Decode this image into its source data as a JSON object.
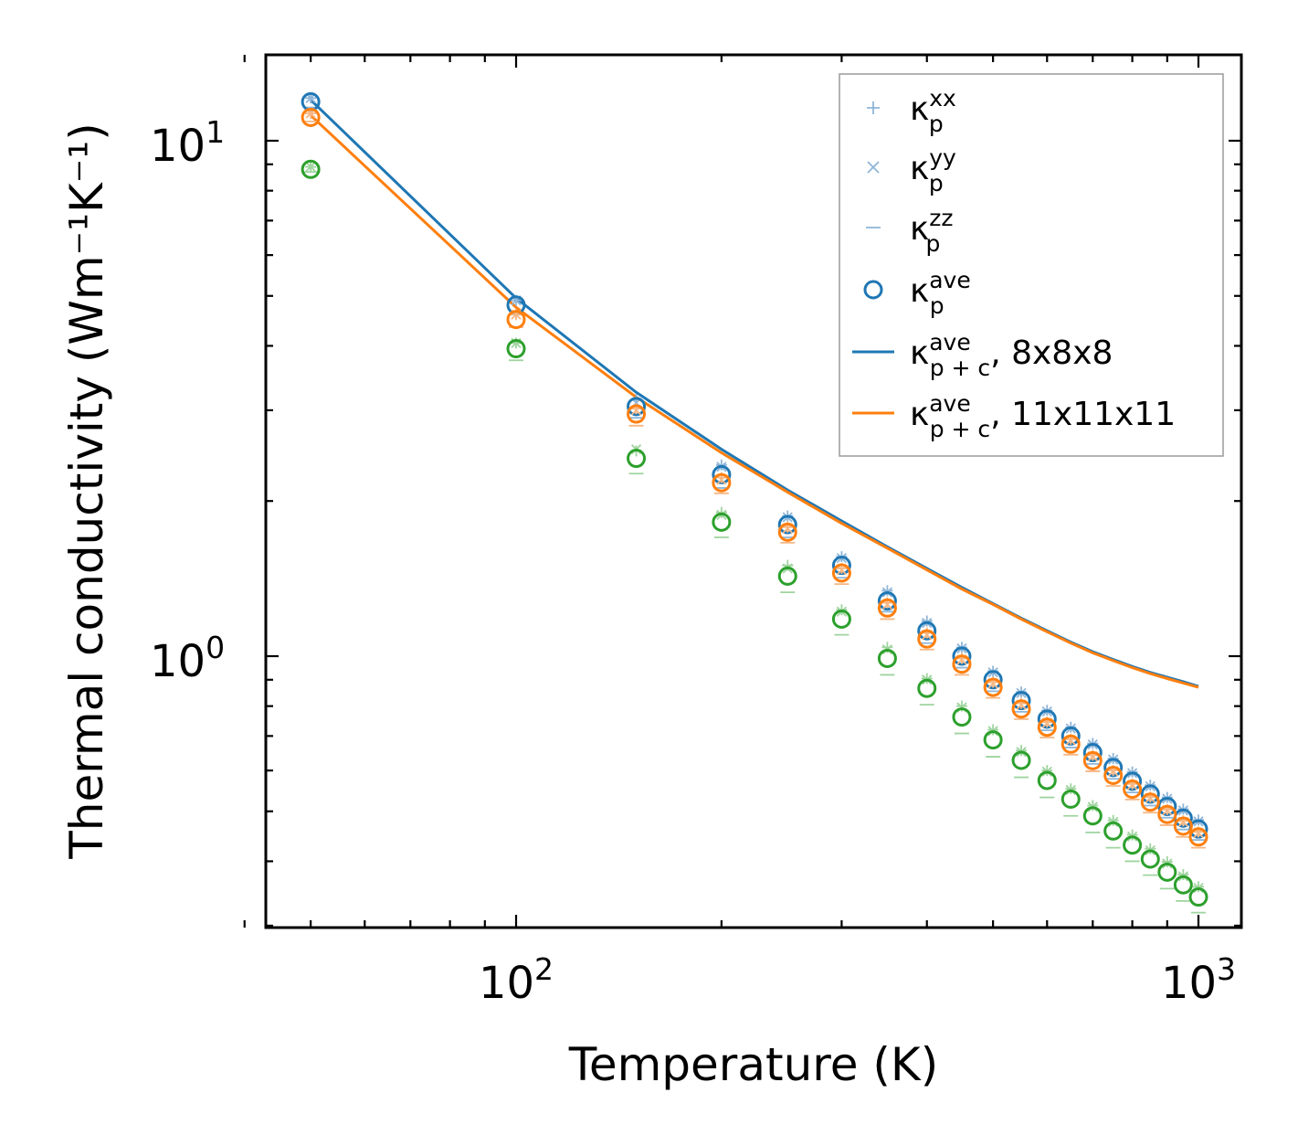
{
  "chart_data": {
    "type": "scatter",
    "xscale": "log",
    "yscale": "log",
    "xlabel": "Temperature (K)",
    "ylabel": "Thermal conductivity",
    "ylabel_units": "(Wm⁻¹K⁻¹)",
    "xlim": [
      40,
      1050
    ],
    "ylim": [
      0.3,
      16
    ],
    "xticks": [
      {
        "value": 100,
        "base": "10",
        "exp": "2"
      },
      {
        "value": 1000,
        "base": "10",
        "exp": "3"
      }
    ],
    "yticks": [
      {
        "value": 1,
        "base": "10",
        "exp": "0"
      },
      {
        "value": 10,
        "base": "10",
        "exp": "1"
      }
    ],
    "x": [
      50,
      100,
      150,
      200,
      250,
      300,
      350,
      400,
      450,
      500,
      550,
      600,
      650,
      700,
      750,
      800,
      850,
      900,
      950,
      1000
    ],
    "series": [
      {
        "name": "blue",
        "color": "#1f77b4",
        "ave": [
          11.9,
          4.8,
          3.05,
          2.25,
          1.8,
          1.5,
          1.28,
          1.12,
          1.0,
          0.9,
          0.82,
          0.755,
          0.7,
          0.65,
          0.608,
          0.572,
          0.54,
          0.511,
          0.485,
          0.462
        ],
        "xx": [
          12.1,
          4.9,
          3.15,
          2.35,
          1.87,
          1.56,
          1.34,
          1.17,
          1.04,
          0.935,
          0.852,
          0.785,
          0.728,
          0.677,
          0.633,
          0.596,
          0.562,
          0.532,
          0.505,
          0.481
        ],
        "yy": [
          12.1,
          4.9,
          3.1,
          2.33,
          1.86,
          1.55,
          1.33,
          1.16,
          1.035,
          0.93,
          0.848,
          0.781,
          0.724,
          0.674,
          0.63,
          0.593,
          0.559,
          0.529,
          0.502,
          0.478
        ],
        "zz": [
          11.6,
          4.6,
          2.9,
          2.12,
          1.7,
          1.42,
          1.22,
          1.06,
          0.95,
          0.855,
          0.78,
          0.718,
          0.665,
          0.618,
          0.578,
          0.544,
          0.513,
          0.486,
          0.461,
          0.44
        ],
        "fit": [
          12.0,
          4.95,
          3.25,
          2.52,
          2.1,
          1.83,
          1.63,
          1.48,
          1.36,
          1.265,
          1.185,
          1.12,
          1.065,
          1.02,
          0.985,
          0.955,
          0.93,
          0.91,
          0.892,
          0.874
        ]
      },
      {
        "name": "orange",
        "color": "#ff7f0e",
        "ave": [
          11.1,
          4.5,
          2.95,
          2.17,
          1.74,
          1.45,
          1.24,
          1.08,
          0.965,
          0.87,
          0.79,
          0.728,
          0.675,
          0.627,
          0.587,
          0.552,
          0.521,
          0.493,
          0.468,
          0.446
        ],
        "xx": [
          11.3,
          4.6,
          3.02,
          2.22,
          1.78,
          1.48,
          1.27,
          1.11,
          0.99,
          0.89,
          0.81,
          0.745,
          0.69,
          0.642,
          0.6,
          0.565,
          0.533,
          0.504,
          0.479,
          0.456
        ],
        "yy": [
          11.3,
          4.6,
          3.0,
          2.2,
          1.77,
          1.47,
          1.26,
          1.1,
          0.985,
          0.885,
          0.805,
          0.742,
          0.687,
          0.639,
          0.598,
          0.563,
          0.531,
          0.502,
          0.477,
          0.454
        ],
        "zz": [
          10.9,
          4.35,
          2.8,
          2.07,
          1.66,
          1.38,
          1.18,
          1.03,
          0.92,
          0.83,
          0.755,
          0.695,
          0.644,
          0.598,
          0.56,
          0.527,
          0.497,
          0.47,
          0.446,
          0.425
        ],
        "fit": [
          11.2,
          4.75,
          3.18,
          2.48,
          2.08,
          1.81,
          1.62,
          1.47,
          1.35,
          1.26,
          1.18,
          1.115,
          1.06,
          1.015,
          0.98,
          0.95,
          0.925,
          0.905,
          0.887,
          0.87
        ]
      },
      {
        "name": "green",
        "color": "#2ca02c",
        "ave": [
          8.8,
          3.95,
          2.42,
          1.82,
          1.43,
          1.18,
          0.99,
          0.866,
          0.762,
          0.688,
          0.628,
          0.574,
          0.528,
          0.49,
          0.458,
          0.43,
          0.404,
          0.381,
          0.36,
          0.341
        ],
        "xx": [
          8.9,
          4.05,
          2.5,
          1.9,
          1.5,
          1.23,
          1.04,
          0.905,
          0.8,
          0.72,
          0.656,
          0.6,
          0.553,
          0.513,
          0.48,
          0.45,
          0.423,
          0.399,
          0.377,
          0.357
        ],
        "yy": [
          8.9,
          4.05,
          2.52,
          1.88,
          1.48,
          1.22,
          1.03,
          0.9,
          0.795,
          0.716,
          0.652,
          0.597,
          0.55,
          0.51,
          0.477,
          0.447,
          0.42,
          0.396,
          0.374,
          0.355
        ],
        "zz": [
          8.7,
          3.75,
          2.26,
          1.7,
          1.33,
          1.1,
          0.92,
          0.805,
          0.708,
          0.638,
          0.582,
          0.532,
          0.49,
          0.455,
          0.425,
          0.4,
          0.376,
          0.354,
          0.335,
          0.318
        ]
      }
    ],
    "legend": {
      "position": "upper right",
      "entries": [
        {
          "marker": "plus",
          "color": "#8fb6d9",
          "sym": "κ",
          "sub": "p",
          "sup": "xx",
          "suffix": ""
        },
        {
          "marker": "cross",
          "color": "#8fb6d9",
          "sym": "κ",
          "sub": "p",
          "sup": "yy",
          "suffix": ""
        },
        {
          "marker": "dash",
          "color": "#8fb6d9",
          "sym": "κ",
          "sub": "p",
          "sup": "zz",
          "suffix": ""
        },
        {
          "marker": "circle",
          "color": "#1f77b4",
          "sym": "κ",
          "sub": "p",
          "sup": "ave",
          "suffix": ""
        },
        {
          "marker": "line",
          "color": "#1f77b4",
          "sym": "κ",
          "sub": "p + c",
          "sup": "ave",
          "suffix": ", 8x8x8"
        },
        {
          "marker": "line",
          "color": "#ff7f0e",
          "sym": "κ",
          "sub": "p + c",
          "sup": "ave",
          "suffix": ", 11x11x11"
        }
      ]
    }
  }
}
